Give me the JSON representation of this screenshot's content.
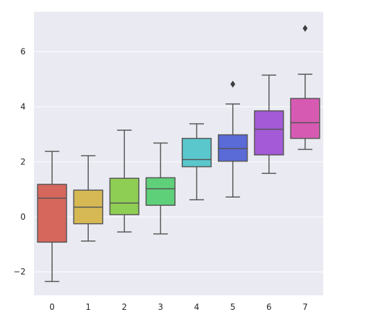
{
  "chart_data": {
    "type": "boxplot",
    "title": "",
    "xlabel": "",
    "ylabel": "",
    "ylim": [
      -2.85,
      7.45
    ],
    "y_ticks": [
      -2,
      0,
      2,
      4,
      6
    ],
    "y_tick_labels": [
      "−2",
      "0",
      "2",
      "4",
      "6"
    ],
    "categories": [
      "0",
      "1",
      "2",
      "3",
      "4",
      "5",
      "6",
      "7"
    ],
    "grid": true,
    "legend": "none",
    "colors": {
      "background": "#eaeaf2",
      "grid": "#ffffff",
      "box_edge": "#555555",
      "boxes": [
        "#d5675d",
        "#d6b955",
        "#8fce54",
        "#5fd07a",
        "#59c7cc",
        "#5a6ad6",
        "#a45ad6",
        "#d65ab2"
      ]
    },
    "series": [
      {
        "category": "0",
        "whisker_low": -2.35,
        "q1": -0.92,
        "median": 0.68,
        "q3": 1.18,
        "whisker_high": 2.38,
        "outliers": []
      },
      {
        "category": "1",
        "whisker_low": -0.88,
        "q1": -0.25,
        "median": 0.35,
        "q3": 0.97,
        "whisker_high": 2.22,
        "outliers": []
      },
      {
        "category": "2",
        "whisker_low": -0.55,
        "q1": 0.08,
        "median": 0.5,
        "q3": 1.4,
        "whisker_high": 3.15,
        "outliers": []
      },
      {
        "category": "3",
        "whisker_low": -0.62,
        "q1": 0.42,
        "median": 1.02,
        "q3": 1.42,
        "whisker_high": 2.68,
        "outliers": []
      },
      {
        "category": "4",
        "whisker_low": 0.62,
        "q1": 1.82,
        "median": 2.08,
        "q3": 2.85,
        "whisker_high": 3.38,
        "outliers": []
      },
      {
        "category": "5",
        "whisker_low": 0.72,
        "q1": 2.02,
        "median": 2.48,
        "q3": 2.98,
        "whisker_high": 4.1,
        "outliers": [
          4.82
        ]
      },
      {
        "category": "6",
        "whisker_low": 1.58,
        "q1": 2.25,
        "median": 3.18,
        "q3": 3.85,
        "whisker_high": 5.15,
        "outliers": []
      },
      {
        "category": "7",
        "whisker_low": 2.45,
        "q1": 2.85,
        "median": 3.42,
        "q3": 4.3,
        "whisker_high": 5.18,
        "outliers": [
          6.85
        ]
      }
    ]
  }
}
